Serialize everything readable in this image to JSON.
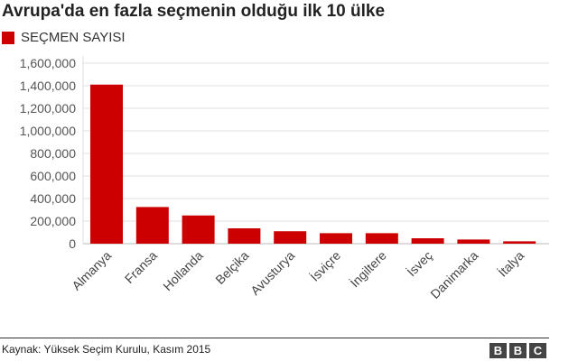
{
  "chart_data": {
    "type": "bar",
    "title": "Avrupa'da en fazla seçmenin olduğu ilk 10 ülke",
    "legend": [
      "SEÇMEN SAYISI"
    ],
    "legend_placement": "top-left",
    "categories": [
      "Almanya",
      "Fransa",
      "Hollanda",
      "Belçika",
      "Avusturya",
      "İsviçre",
      "İngiltere",
      "İsveç",
      "Danimarka",
      "İtalya"
    ],
    "series": [
      {
        "name": "SEÇMEN SAYISI",
        "values": [
          1410000,
          325000,
          250000,
          136000,
          110000,
          93000,
          93000,
          48000,
          37000,
          21000
        ]
      }
    ],
    "ylim": [
      0,
      1600000
    ],
    "yticks": [
      0,
      200000,
      400000,
      600000,
      800000,
      1000000,
      1200000,
      1400000,
      1600000
    ],
    "ytick_labels": [
      "0",
      "200,000",
      "400,000",
      "600,000",
      "800,000",
      "1,000,000",
      "1,200,000",
      "1,400,000",
      "1,600,000"
    ],
    "grid": true,
    "color": "#cc0000"
  },
  "footer": {
    "source": "Kaynak: Yüksek Seçim Kurulu, Kasım 2015",
    "logo": [
      "B",
      "B",
      "C"
    ]
  }
}
